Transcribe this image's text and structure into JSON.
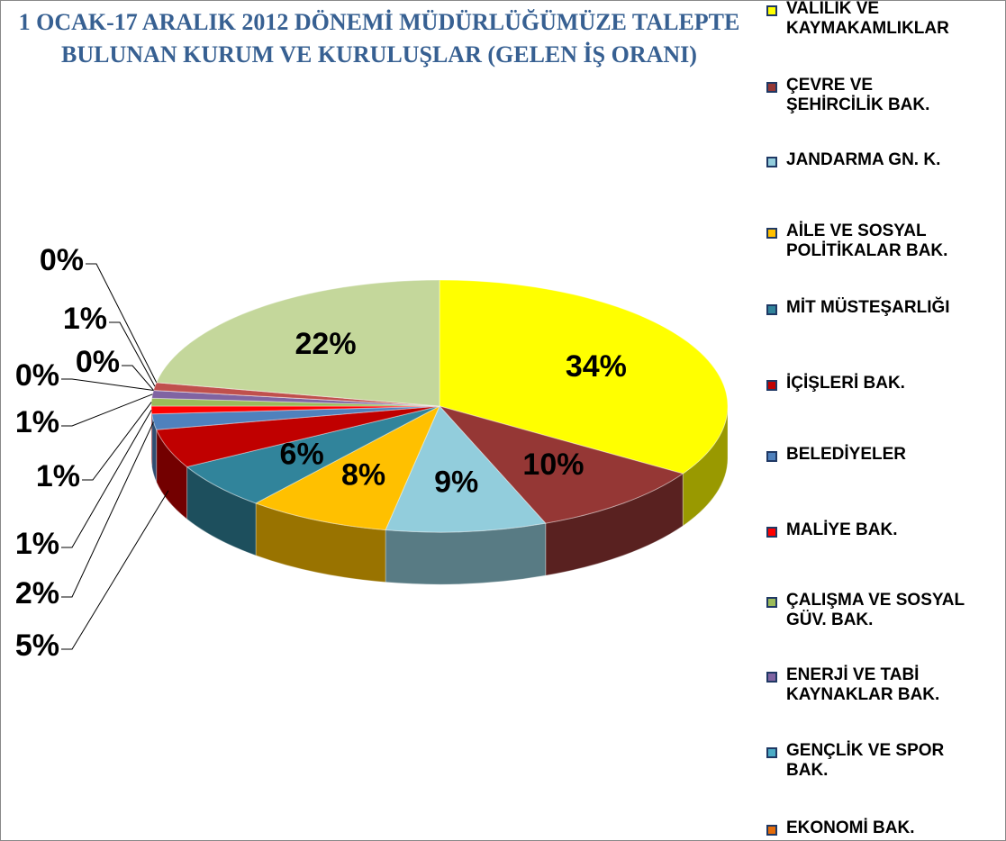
{
  "chart_data": {
    "type": "pie",
    "title": "1 OCAK-17 ARALIK 2012 DÖNEMİ MÜDÜRLÜĞÜMÜZE TALEPTE  BULUNAN KURUM VE KURULUŞLAR  (GELEN İŞ ORANI)",
    "categories": [
      "VALİLİK VE KAYMAKAMLIKLAR",
      "ÇEVRE VE ŞEHİRCİLİK BAK.",
      "JANDARMA GN. K.",
      "AİLE VE SOSYAL POLİTİKALAR BAK.",
      "MİT MÜSTEŞARLIĞI",
      "İÇİŞLERİ BAK.",
      "BELEDİYELER",
      "MALİYE BAK.",
      "ÇALIŞMA VE SOSYAL GÜV. BAK.",
      "ENERJİ VE TABİ KAYNAKLAR BAK.",
      "GENÇLİK VE SPOR BAK.",
      "EKONOMİ BAK.",
      null,
      null,
      null
    ],
    "values": [
      34,
      10,
      9,
      8,
      6,
      5,
      2,
      1,
      1,
      1,
      0,
      0,
      1,
      0,
      22
    ],
    "value_labels": [
      "34%",
      "10%",
      "9%",
      "8%",
      "6%",
      "5%",
      "2%",
      "1%",
      "1%",
      "1%",
      "0%",
      "0%",
      "1%",
      "0%",
      "22%"
    ],
    "colors": [
      "#ffff00",
      "#953735",
      "#92cddc",
      "#ffc000",
      "#31849b",
      "#c00000",
      "#4f81bd",
      "#ff0000",
      "#9bbb59",
      "#8064a2",
      "#4bacc6",
      "#e46c0a",
      "#c0504d",
      "#1f497d",
      "#c4d79b"
    ],
    "legend": "right"
  }
}
